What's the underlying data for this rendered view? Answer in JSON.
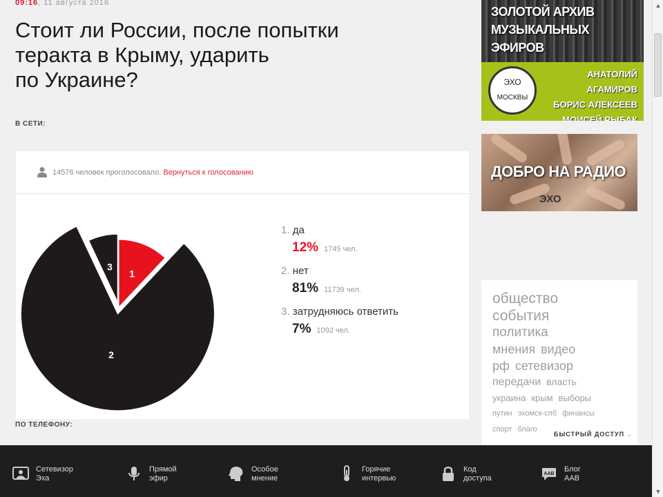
{
  "article": {
    "time": "09:16",
    "date": ", 11 августа 2016",
    "title_lines": [
      "Стоит ли России, после попытки",
      "теракта в Крыму, ударить",
      "по Украине?"
    ],
    "section_online": "В СЕТИ:",
    "section_phone": "ПО ТЕЛЕФОНУ:"
  },
  "poll": {
    "voters_text": "14576 человек проголосовало.",
    "back_link": "Вернуться к голосованию",
    "options": [
      {
        "num": "1.",
        "label": "да",
        "percent": "12%",
        "count": "1745 чел."
      },
      {
        "num": "2.",
        "label": "нет",
        "percent": "81%",
        "count": "11739 чел."
      },
      {
        "num": "3.",
        "label": "затрудняюсь ответить",
        "percent": "7%",
        "count": "1092 чел."
      }
    ]
  },
  "chart_data": {
    "type": "pie",
    "categories": [
      "1",
      "2",
      "3"
    ],
    "values": [
      12,
      81,
      7
    ],
    "colors": [
      "#e8121f",
      "#1f1a1a",
      "#1f1a1a"
    ],
    "title": ""
  },
  "banners": {
    "archive_line1": "ЗОЛОТОЙ АРХИВ",
    "archive_line2": "МУЗЫКАЛЬНЫХ ЭФИРОВ",
    "logo_top": "ЭХО",
    "logo_bottom": "МОСКВЫ",
    "names": [
      "АНАТОЛИЙ АГАМИРОВ",
      "БОРИС АЛЕКСЕЕВ",
      "МОИСЕЙ РЫБАК"
    ],
    "charity_text": "ДОБРО НА РАДИО",
    "charity_logo": "ЭХО"
  },
  "tags": [
    [
      "общество"
    ],
    [
      "события"
    ],
    [
      "политика"
    ],
    [
      "мнения",
      "видео"
    ],
    [
      "рф",
      "сетевизор"
    ],
    [
      "передачи",
      "власть"
    ],
    [
      "украина",
      "крым",
      "выборы"
    ],
    [
      "путин",
      "эхомск-спб",
      "финансы"
    ],
    [
      "спорт",
      "благо"
    ]
  ],
  "quick_access": "БЫСТРЫЙ ДОСТУП",
  "footer": [
    {
      "icon": "tv-icon",
      "line1": "Сетевизор",
      "line2": "Эха"
    },
    {
      "icon": "microphone-icon",
      "line1": "Прямой",
      "line2": "эфир"
    },
    {
      "icon": "head-icon",
      "line1": "Особое",
      "line2": "мнение"
    },
    {
      "icon": "thermometer-icon",
      "line1": "Горячие",
      "line2": "интервью"
    },
    {
      "icon": "lock-icon",
      "line1": "Код",
      "line2": "доступа"
    },
    {
      "icon": "blog-icon",
      "line1": "Блог",
      "line2": "ААВ"
    }
  ]
}
